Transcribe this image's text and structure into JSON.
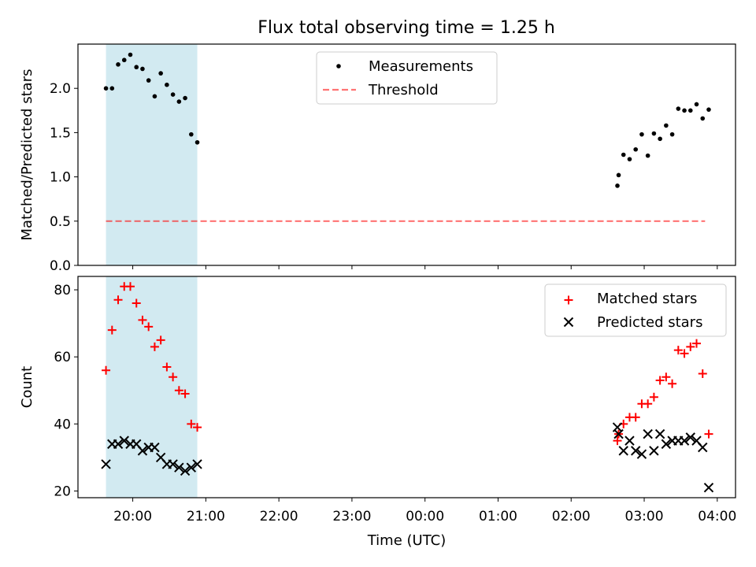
{
  "title": "Flux total observing time = 1.25 h",
  "colors": {
    "shade": "#add8e6",
    "threshold": "#ff0000",
    "matched": "#ff0000",
    "predicted": "#000000",
    "measurement": "#000000"
  },
  "chart_data": [
    {
      "type": "scatter",
      "ylabel": "Matched/Predicted stars",
      "xlabel": "",
      "xlim": [
        "19:15",
        "04:15"
      ],
      "ylim": [
        0,
        2.5
      ],
      "yticks": [
        "0.0",
        "0.5",
        "1.0",
        "1.5",
        "2.0"
      ],
      "legend": {
        "placement": "top-center",
        "entries": [
          "Measurements",
          "Threshold"
        ]
      },
      "shaded_interval": [
        "19:38",
        "20:53"
      ],
      "threshold": {
        "name": "Threshold",
        "value": 0.5,
        "x_range": [
          "19:38",
          "03:50"
        ],
        "style": "dashed"
      },
      "series": [
        {
          "name": "Measurements",
          "marker": "dot",
          "points": [
            [
              "19:38",
              2.0
            ],
            [
              "19:43",
              2.0
            ],
            [
              "19:48",
              2.27
            ],
            [
              "19:53",
              2.32
            ],
            [
              "19:58",
              2.38
            ],
            [
              "20:03",
              2.24
            ],
            [
              "20:08",
              2.22
            ],
            [
              "20:13",
              2.09
            ],
            [
              "20:18",
              1.91
            ],
            [
              "20:23",
              2.17
            ],
            [
              "20:28",
              2.04
            ],
            [
              "20:33",
              1.93
            ],
            [
              "20:38",
              1.85
            ],
            [
              "20:43",
              1.89
            ],
            [
              "20:48",
              1.48
            ],
            [
              "20:53",
              1.39
            ],
            [
              "02:38",
              0.9
            ],
            [
              "02:39",
              1.02
            ],
            [
              "02:43",
              1.25
            ],
            [
              "02:48",
              1.2
            ],
            [
              "02:53",
              1.31
            ],
            [
              "02:58",
              1.48
            ],
            [
              "03:03",
              1.24
            ],
            [
              "03:08",
              1.49
            ],
            [
              "03:13",
              1.43
            ],
            [
              "03:18",
              1.58
            ],
            [
              "03:23",
              1.48
            ],
            [
              "03:28",
              1.77
            ],
            [
              "03:33",
              1.75
            ],
            [
              "03:38",
              1.75
            ],
            [
              "03:43",
              1.82
            ],
            [
              "03:48",
              1.66
            ],
            [
              "03:53",
              1.76
            ]
          ]
        }
      ]
    },
    {
      "type": "scatter",
      "ylabel": "Count",
      "xlabel": "Time (UTC)",
      "xlim": [
        "19:15",
        "04:15"
      ],
      "ylim": [
        18,
        84
      ],
      "yticks": [
        "20",
        "40",
        "60",
        "80"
      ],
      "xticks": [
        "20:00",
        "21:00",
        "22:00",
        "23:00",
        "00:00",
        "01:00",
        "02:00",
        "03:00",
        "04:00"
      ],
      "legend": {
        "placement": "top-right",
        "entries": [
          "Matched stars",
          "Predicted stars"
        ]
      },
      "shaded_interval": [
        "19:38",
        "20:53"
      ],
      "series": [
        {
          "name": "Matched stars",
          "marker": "plus",
          "points": [
            [
              "19:38",
              56
            ],
            [
              "19:43",
              68
            ],
            [
              "19:48",
              77
            ],
            [
              "19:53",
              81
            ],
            [
              "19:58",
              81
            ],
            [
              "20:03",
              76
            ],
            [
              "20:08",
              71
            ],
            [
              "20:13",
              69
            ],
            [
              "20:18",
              63
            ],
            [
              "20:23",
              65
            ],
            [
              "20:28",
              57
            ],
            [
              "20:33",
              54
            ],
            [
              "20:38",
              50
            ],
            [
              "20:43",
              49
            ],
            [
              "20:48",
              40
            ],
            [
              "20:53",
              39
            ],
            [
              "02:38",
              35
            ],
            [
              "02:39",
              37
            ],
            [
              "02:43",
              40
            ],
            [
              "02:48",
              42
            ],
            [
              "02:53",
              42
            ],
            [
              "02:58",
              46
            ],
            [
              "03:03",
              46
            ],
            [
              "03:08",
              48
            ],
            [
              "03:13",
              53
            ],
            [
              "03:18",
              54
            ],
            [
              "03:23",
              52
            ],
            [
              "03:28",
              62
            ],
            [
              "03:33",
              61
            ],
            [
              "03:38",
              63
            ],
            [
              "03:43",
              64
            ],
            [
              "03:48",
              55
            ],
            [
              "03:53",
              37
            ]
          ]
        },
        {
          "name": "Predicted stars",
          "marker": "x",
          "points": [
            [
              "19:38",
              28
            ],
            [
              "19:43",
              34
            ],
            [
              "19:48",
              34
            ],
            [
              "19:53",
              35
            ],
            [
              "19:58",
              34
            ],
            [
              "20:03",
              34
            ],
            [
              "20:08",
              32
            ],
            [
              "20:13",
              33
            ],
            [
              "20:18",
              33
            ],
            [
              "20:23",
              30
            ],
            [
              "20:28",
              28
            ],
            [
              "20:33",
              28
            ],
            [
              "20:38",
              27
            ],
            [
              "20:43",
              26
            ],
            [
              "20:48",
              27
            ],
            [
              "20:53",
              28
            ],
            [
              "02:38",
              39
            ],
            [
              "02:39",
              37
            ],
            [
              "02:43",
              32
            ],
            [
              "02:48",
              35
            ],
            [
              "02:53",
              32
            ],
            [
              "02:58",
              31
            ],
            [
              "03:03",
              37
            ],
            [
              "03:08",
              32
            ],
            [
              "03:13",
              37
            ],
            [
              "03:18",
              34
            ],
            [
              "03:23",
              35
            ],
            [
              "03:28",
              35
            ],
            [
              "03:33",
              35
            ],
            [
              "03:38",
              36
            ],
            [
              "03:43",
              35
            ],
            [
              "03:48",
              33
            ],
            [
              "03:53",
              21
            ]
          ]
        }
      ]
    }
  ]
}
